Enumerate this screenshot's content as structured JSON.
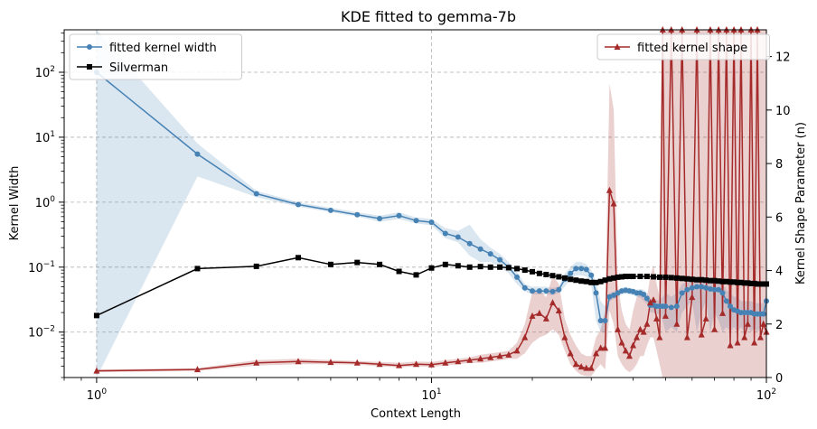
{
  "chart_data": {
    "type": "line",
    "title": "KDE fitted to gemma-7b",
    "xlabel": "Context Length",
    "ylabel": "Kernel Width",
    "y2label": "Kernel Shape Parameter (n)",
    "xscale": "log",
    "yscale": "log",
    "xlim": [
      0.8,
      100
    ],
    "ylim": [
      0.002,
      450
    ],
    "y2lim": [
      0,
      13
    ],
    "grid": true,
    "x_ticks": [
      {
        "value": 1,
        "base": "10",
        "exp": "0"
      },
      {
        "value": 10,
        "base": "10",
        "exp": "1"
      },
      {
        "value": 100,
        "base": "10",
        "exp": "2"
      }
    ],
    "y_ticks": [
      {
        "value": 0.01,
        "base": "10",
        "exp": "−2"
      },
      {
        "value": 0.1,
        "base": "10",
        "exp": "−1"
      },
      {
        "value": 1,
        "base": "10",
        "exp": "0"
      },
      {
        "value": 10,
        "base": "10",
        "exp": "1"
      },
      {
        "value": 100,
        "base": "10",
        "exp": "2"
      }
    ],
    "y2_ticks": [
      "0",
      "2",
      "4",
      "6",
      "8",
      "10",
      "12"
    ],
    "legend_left": {
      "placement": "upper-left",
      "entries": [
        "fitted kernel width",
        "Silverman"
      ]
    },
    "legend_right": {
      "placement": "upper-right",
      "entries": [
        "fitted kernel shape"
      ]
    },
    "colors": {
      "width": "#4682b4",
      "silverman": "#000000",
      "shape": "#a52a2a"
    },
    "series": [
      {
        "name": "fitted kernel width",
        "axis": "left",
        "marker": "circle",
        "x": [
          1,
          2,
          3,
          4,
          5,
          6,
          7,
          8,
          9,
          10,
          11,
          12,
          13,
          14,
          15,
          16,
          17,
          18,
          19,
          20,
          21,
          22,
          23,
          24,
          25,
          26,
          27,
          28,
          29,
          30,
          31,
          32,
          33,
          34,
          35,
          36,
          37,
          38,
          39,
          40,
          41,
          42,
          43,
          44,
          45,
          46,
          47,
          48,
          49,
          50,
          52,
          54,
          56,
          58,
          60,
          62,
          64,
          66,
          68,
          70,
          72,
          74,
          76,
          78,
          80,
          82,
          84,
          86,
          88,
          90,
          92,
          94,
          96,
          98,
          100
        ],
        "y": [
          100,
          5.5,
          1.35,
          0.92,
          0.75,
          0.64,
          0.56,
          0.62,
          0.52,
          0.49,
          0.33,
          0.29,
          0.23,
          0.19,
          0.16,
          0.13,
          0.1,
          0.07,
          0.048,
          0.043,
          0.043,
          0.043,
          0.042,
          0.045,
          0.065,
          0.08,
          0.095,
          0.095,
          0.092,
          0.075,
          0.04,
          0.015,
          0.015,
          0.035,
          0.037,
          0.04,
          0.043,
          0.044,
          0.043,
          0.042,
          0.04,
          0.04,
          0.038,
          0.033,
          0.026,
          0.026,
          0.025,
          0.025,
          0.025,
          0.025,
          0.024,
          0.025,
          0.04,
          0.045,
          0.048,
          0.05,
          0.05,
          0.048,
          0.046,
          0.045,
          0.045,
          0.04,
          0.03,
          0.025,
          0.022,
          0.021,
          0.02,
          0.02,
          0.02,
          0.02,
          0.019,
          0.019,
          0.019,
          0.019,
          0.03
        ],
        "band_low": [
          0.001,
          2.5,
          1.2,
          0.85,
          0.7,
          0.6,
          0.5,
          0.55,
          0.47,
          0.44,
          0.28,
          0.24,
          0.15,
          0.12,
          0.12,
          0.1,
          0.08,
          0.055,
          0.042,
          0.038,
          0.038,
          0.038,
          0.037,
          0.04,
          0.05,
          0.065,
          0.075,
          0.075,
          0.072,
          0.055,
          0.015,
          0.01,
          0.01,
          0.03,
          0.032,
          0.035,
          0.038,
          0.039,
          0.038,
          0.037,
          0.035,
          0.034,
          0.03,
          0.027,
          0.02,
          0.02,
          0.019,
          0.019,
          0.015,
          0.01,
          0.012,
          0.01,
          0.02,
          0.025,
          0.03,
          0.01,
          0.02,
          0.03,
          0.01,
          0.02,
          0.015,
          0.01,
          0.012,
          0.01,
          0.012,
          0.01,
          0.012,
          0.01,
          0.012,
          0.01,
          0.012,
          0.01,
          0.012,
          0.012,
          0.02
        ],
        "band_high": [
          450,
          8,
          1.5,
          1.0,
          0.82,
          0.7,
          0.62,
          0.7,
          0.58,
          0.55,
          0.4,
          0.36,
          0.45,
          0.27,
          0.2,
          0.16,
          0.12,
          0.085,
          0.055,
          0.05,
          0.05,
          0.05,
          0.048,
          0.05,
          0.08,
          0.1,
          0.12,
          0.12,
          0.11,
          0.09,
          0.06,
          0.03,
          0.025,
          0.04,
          0.042,
          0.045,
          0.048,
          0.05,
          0.048,
          0.047,
          0.045,
          0.046,
          0.045,
          0.04,
          0.033,
          0.032,
          0.031,
          0.031,
          0.035,
          0.04,
          0.035,
          0.04,
          0.055,
          0.06,
          0.065,
          0.07,
          0.07,
          0.065,
          0.06,
          0.06,
          0.06,
          0.055,
          0.045,
          0.04,
          0.035,
          0.035,
          0.03,
          0.03,
          0.03,
          0.03,
          0.028,
          0.028,
          0.028,
          0.028,
          0.04
        ]
      },
      {
        "name": "Silverman",
        "axis": "left",
        "marker": "square",
        "x": [
          1,
          2,
          3,
          4,
          5,
          6,
          7,
          8,
          9,
          10,
          11,
          12,
          13,
          14,
          15,
          16,
          17,
          18,
          19,
          20,
          21,
          22,
          23,
          24,
          25,
          26,
          27,
          28,
          29,
          30,
          31,
          32,
          33,
          34,
          35,
          36,
          37,
          38,
          39,
          40,
          42,
          44,
          46,
          48,
          50,
          52,
          54,
          56,
          58,
          60,
          62,
          64,
          66,
          68,
          70,
          72,
          74,
          76,
          78,
          80,
          82,
          84,
          86,
          88,
          90,
          92,
          94,
          96,
          98,
          100
        ],
        "y": [
          0.018,
          0.095,
          0.103,
          0.14,
          0.11,
          0.118,
          0.11,
          0.086,
          0.076,
          0.097,
          0.11,
          0.105,
          0.1,
          0.102,
          0.1,
          0.1,
          0.098,
          0.095,
          0.09,
          0.085,
          0.08,
          0.077,
          0.074,
          0.071,
          0.068,
          0.065,
          0.063,
          0.061,
          0.06,
          0.058,
          0.058,
          0.06,
          0.063,
          0.066,
          0.068,
          0.07,
          0.071,
          0.072,
          0.072,
          0.072,
          0.072,
          0.072,
          0.071,
          0.07,
          0.07,
          0.069,
          0.068,
          0.067,
          0.066,
          0.065,
          0.064,
          0.064,
          0.063,
          0.062,
          0.062,
          0.061,
          0.06,
          0.06,
          0.059,
          0.059,
          0.058,
          0.058,
          0.057,
          0.057,
          0.056,
          0.056,
          0.055,
          0.055,
          0.055,
          0.055
        ]
      },
      {
        "name": "fitted kernel shape",
        "axis": "right",
        "marker": "triangle",
        "x": [
          1,
          2,
          3,
          4,
          5,
          6,
          7,
          8,
          9,
          10,
          11,
          12,
          13,
          14,
          15,
          16,
          17,
          18,
          19,
          20,
          21,
          22,
          23,
          24,
          25,
          26,
          27,
          28,
          29,
          30,
          31,
          32,
          33,
          34,
          35,
          36,
          37,
          38,
          39,
          40,
          41,
          42,
          43,
          44,
          45,
          46,
          47,
          48,
          49,
          50,
          52,
          54,
          56,
          58,
          60,
          62,
          64,
          66,
          68,
          70,
          72,
          74,
          76,
          78,
          80,
          82,
          84,
          86,
          88,
          90,
          92,
          94,
          96,
          98,
          100
        ],
        "y": [
          0.25,
          0.3,
          0.55,
          0.6,
          0.57,
          0.55,
          0.5,
          0.45,
          0.5,
          0.48,
          0.55,
          0.6,
          0.65,
          0.7,
          0.75,
          0.8,
          0.85,
          1.0,
          1.5,
          2.3,
          2.4,
          2.2,
          2.8,
          2.5,
          1.5,
          0.9,
          0.5,
          0.4,
          0.35,
          0.35,
          0.9,
          1.1,
          1.1,
          7.0,
          6.5,
          1.8,
          1.3,
          1.0,
          0.8,
          1.2,
          1.5,
          1.8,
          1.7,
          2.0,
          2.8,
          2.9,
          2.2,
          1.5,
          13,
          2.3,
          13,
          2.0,
          13,
          1.5,
          3.0,
          13,
          1.6,
          2.2,
          13,
          1.8,
          13,
          2.4,
          13,
          1.2,
          13,
          1.3,
          13,
          1.5,
          2.0,
          13,
          1.3,
          13,
          1.5,
          2.0,
          1.7
        ],
        "band_low": [
          0.2,
          0.25,
          0.45,
          0.5,
          0.5,
          0.48,
          0.42,
          0.38,
          0.42,
          0.4,
          0.45,
          0.5,
          0.55,
          0.55,
          0.6,
          0.65,
          0.7,
          0.7,
          0.9,
          1.3,
          1.5,
          1.6,
          1.8,
          1.6,
          1.0,
          0.5,
          0.25,
          0.1,
          0.05,
          0.05,
          0.3,
          0.5,
          0.3,
          2.5,
          2.0,
          0.8,
          0.5,
          0.3,
          0.2,
          0.3,
          0.5,
          0.8,
          0.8,
          1.2,
          1.5,
          1.5,
          1.0,
          0.5,
          0,
          0,
          0,
          0,
          0,
          0,
          0,
          0,
          0,
          0,
          0,
          0,
          0,
          0,
          0,
          0,
          0,
          0,
          0,
          0,
          0,
          0,
          0,
          0,
          0,
          0,
          0
        ],
        "band_high": [
          0.3,
          0.35,
          0.65,
          0.7,
          0.65,
          0.62,
          0.58,
          0.55,
          0.6,
          0.58,
          0.65,
          0.7,
          0.75,
          0.85,
          0.9,
          0.95,
          1.0,
          1.3,
          2.0,
          3.2,
          3.3,
          3.0,
          3.8,
          3.5,
          2.2,
          1.6,
          1.2,
          0.9,
          0.8,
          0.8,
          1.5,
          1.8,
          2.5,
          11.0,
          10.0,
          3.5,
          2.5,
          2.0,
          1.8,
          2.5,
          3.0,
          3.2,
          3.0,
          3.0,
          3.8,
          4.2,
          3.5,
          3.0,
          13,
          13,
          13,
          13,
          13,
          13,
          13,
          13,
          13,
          13,
          13,
          13,
          13,
          13,
          13,
          13,
          13,
          13,
          13,
          13,
          13,
          13,
          13,
          13,
          13,
          13,
          13
        ]
      }
    ]
  }
}
